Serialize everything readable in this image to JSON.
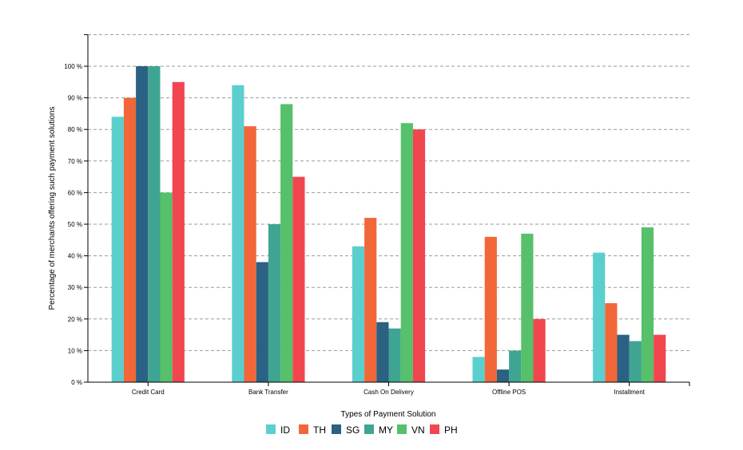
{
  "chart_data": {
    "type": "bar",
    "xlabel": "Types of Payment Solution",
    "ylabel": "Percentage of merchants offering such payment solutions",
    "ylim": [
      0,
      110
    ],
    "y_ticks": [
      "0 %",
      "10 %",
      "20 %",
      "30 %",
      "40 %",
      "50 %",
      "60 %",
      "70 %",
      "80 %",
      "90 %",
      "100 %"
    ],
    "grid": "horizontal-dashed",
    "legend_position": "bottom-center",
    "categories": [
      "Credit Card",
      "Bank Transfer",
      "Cash On Delivery",
      "Offline POS",
      "Installment"
    ],
    "series": [
      {
        "name": "ID",
        "color": "#5bcfcd",
        "values": [
          84,
          94,
          43,
          8,
          41
        ]
      },
      {
        "name": "TH",
        "color": "#f2673a",
        "values": [
          90,
          81,
          52,
          46,
          25
        ]
      },
      {
        "name": "SG",
        "color": "#2b6182",
        "values": [
          100,
          38,
          19,
          4,
          15
        ]
      },
      {
        "name": "MY",
        "color": "#3fa592",
        "values": [
          100,
          50,
          17,
          10,
          13
        ]
      },
      {
        "name": "VN",
        "color": "#56c06a",
        "values": [
          60,
          88,
          82,
          47,
          49
        ]
      },
      {
        "name": "PH",
        "color": "#f2464f",
        "values": [
          95,
          65,
          80,
          20,
          15
        ]
      }
    ]
  }
}
